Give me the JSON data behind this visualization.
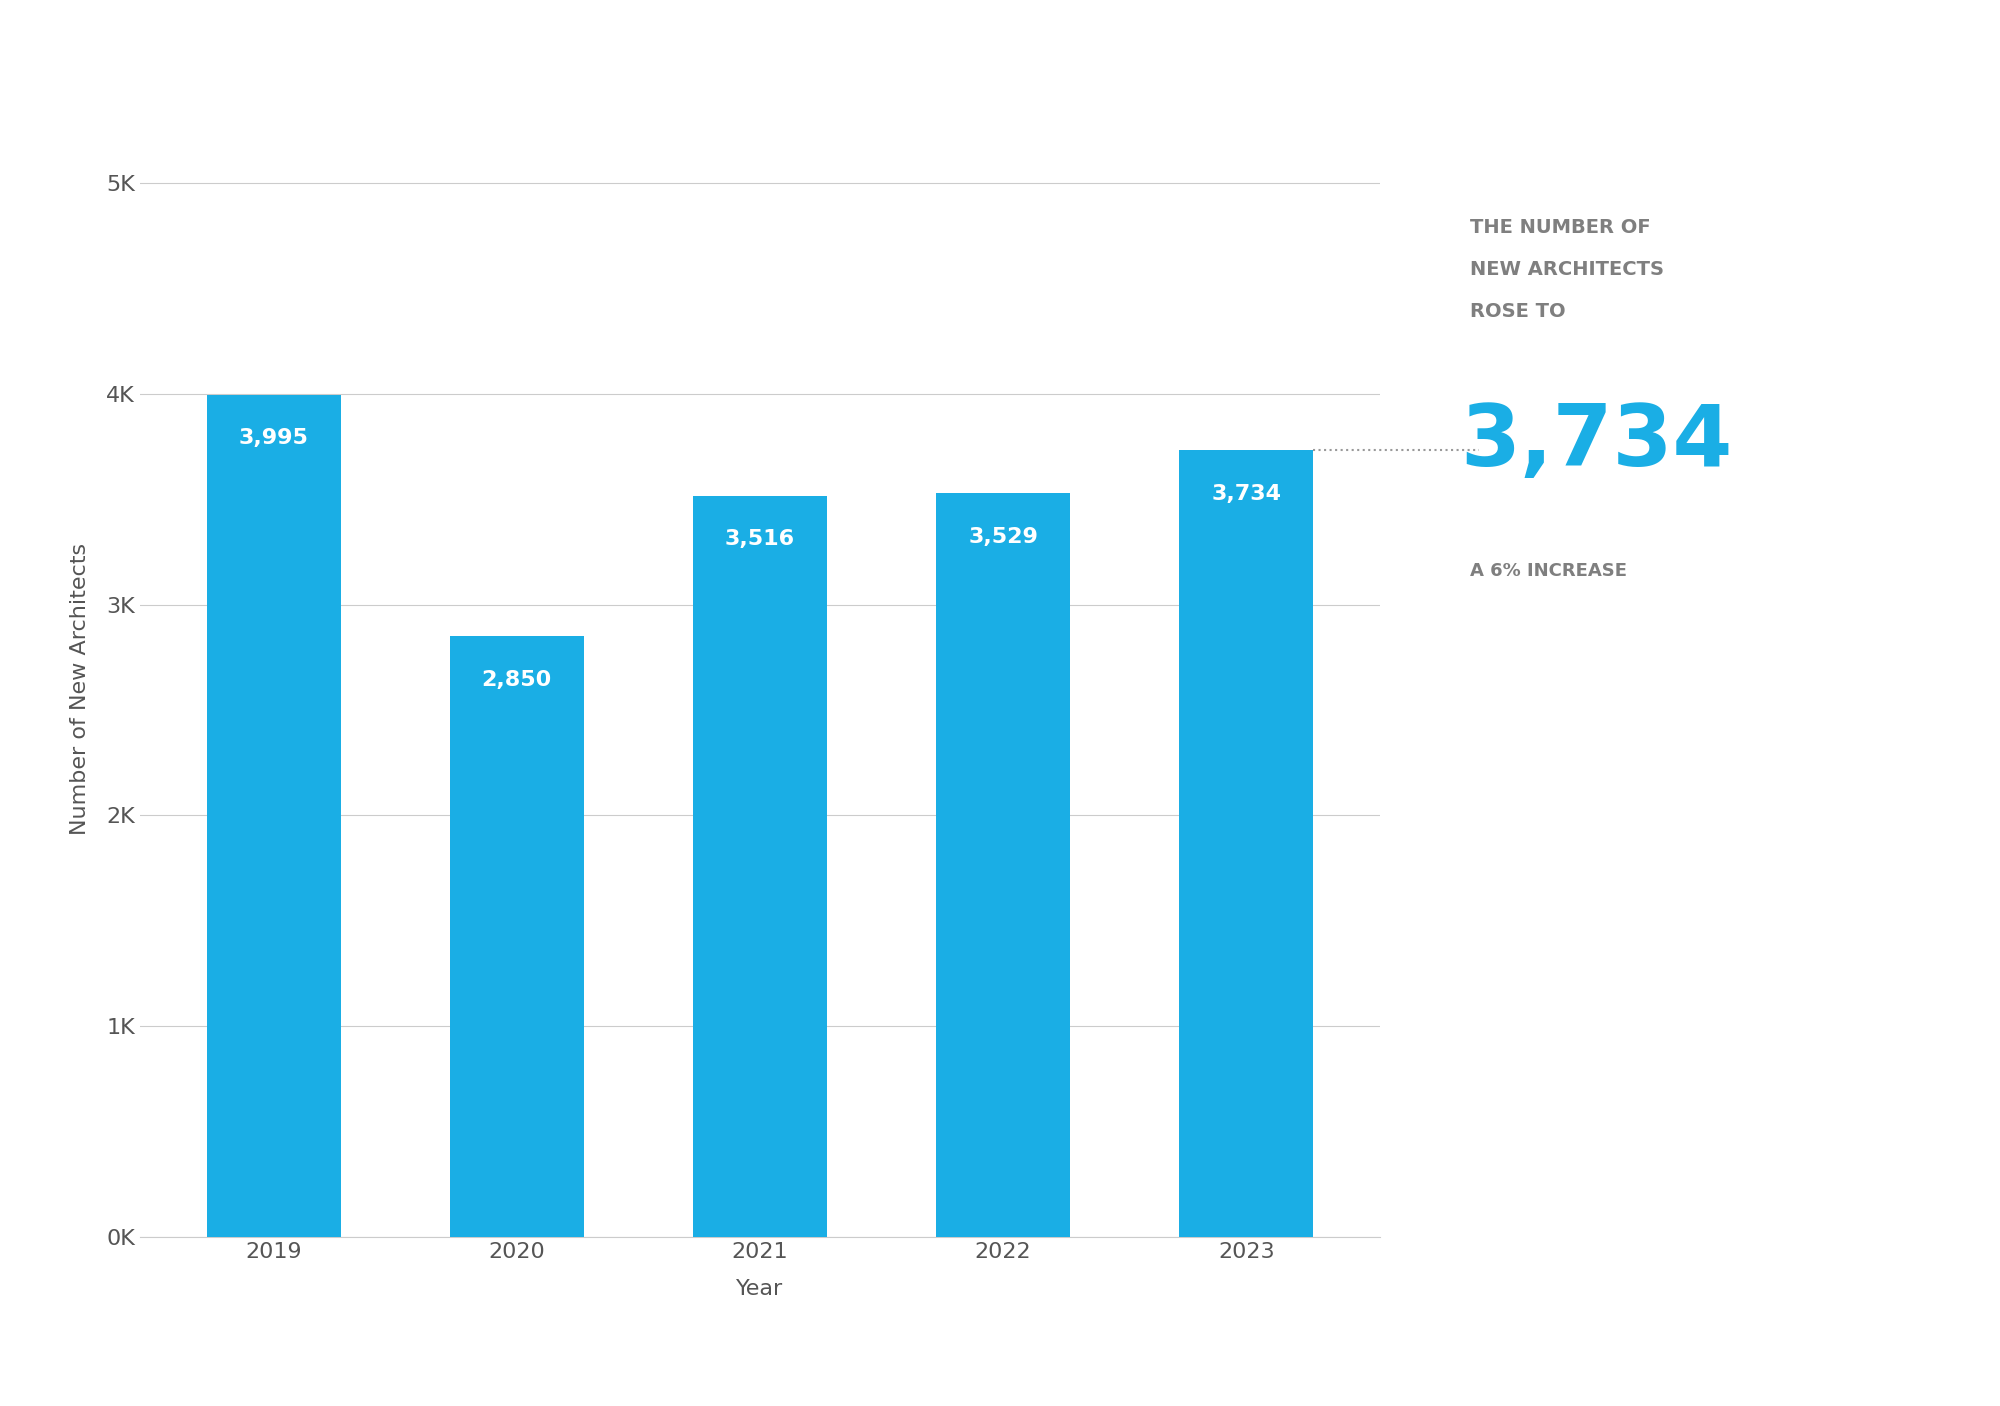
{
  "years": [
    "2019",
    "2020",
    "2021",
    "2022",
    "2023"
  ],
  "values": [
    3995,
    2850,
    3516,
    3529,
    3734
  ],
  "bar_color": "#1AAEE5",
  "bar_label_color": "#FFFFFF",
  "ytick_labels": [
    "0K",
    "1K",
    "2K",
    "3K",
    "4K",
    "5K"
  ],
  "ytick_values": [
    0,
    1000,
    2000,
    3000,
    4000,
    5000
  ],
  "ylim": [
    0,
    5200
  ],
  "xlabel": "Year",
  "ylabel": "Number of New Architects",
  "annotation_line1": "THE NUMBER OF",
  "annotation_line2": "NEW ARCHITECTS",
  "annotation_line3": "ROSE TO",
  "annotation_big_number": "3,734",
  "annotation_sub": "A 6% INCREASE",
  "annotation_gray_color": "#7f7f7f",
  "annotation_blue_color": "#1AAEE5",
  "dotted_line_value": 3734,
  "background_color": "#FFFFFF",
  "grid_color": "#CCCCCC",
  "bar_label_fontsize": 16,
  "axis_label_fontsize": 16,
  "tick_label_fontsize": 16,
  "annotation_header_fontsize": 14,
  "annotation_big_fontsize": 62,
  "annotation_sub_fontsize": 13
}
